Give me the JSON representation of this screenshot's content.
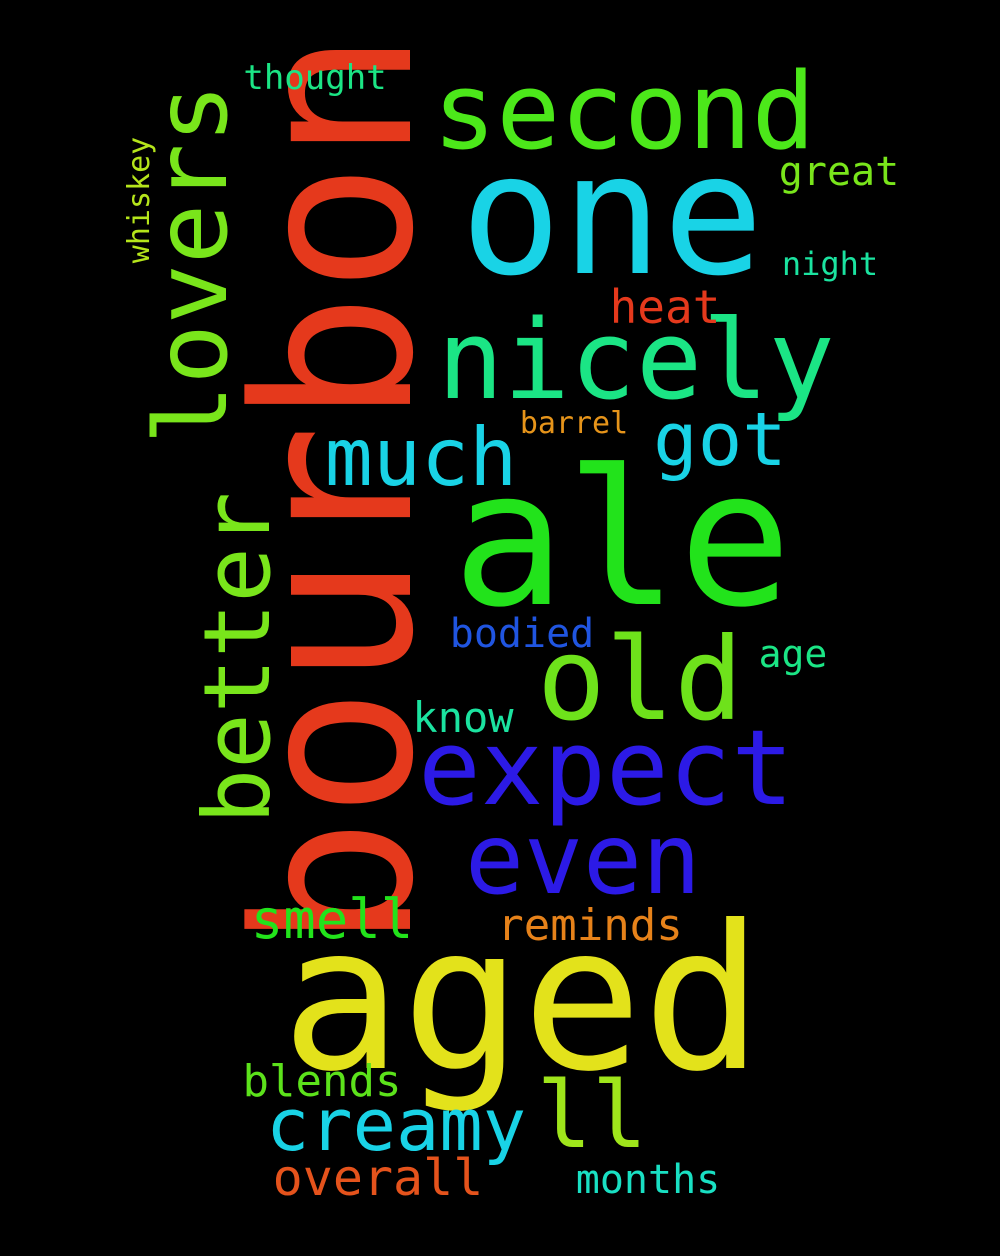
{
  "words": [
    {
      "text": "bourbon",
      "color": "#e5391c"
    },
    {
      "text": "aged",
      "color": "#e3e21b"
    },
    {
      "text": "ale",
      "color": "#22e31b"
    },
    {
      "text": "one",
      "color": "#19d3e6"
    },
    {
      "text": "second",
      "color": "#4ce81a"
    },
    {
      "text": "nicely",
      "color": "#1be585"
    },
    {
      "text": "expect",
      "color": "#2c1ae6"
    },
    {
      "text": "even",
      "color": "#2c1ae6"
    },
    {
      "text": "lovers",
      "color": "#79e51b"
    },
    {
      "text": "better",
      "color": "#79e51b"
    },
    {
      "text": "old",
      "color": "#6ee21b"
    },
    {
      "text": "ll",
      "color": "#9fe51b"
    },
    {
      "text": "much",
      "color": "#19d3e6"
    },
    {
      "text": "got",
      "color": "#19d3e6"
    },
    {
      "text": "creamy",
      "color": "#19d3e6"
    },
    {
      "text": "smell",
      "color": "#22e31b"
    },
    {
      "text": "reminds",
      "color": "#e6821a"
    },
    {
      "text": "overall",
      "color": "#e5531c"
    },
    {
      "text": "blends",
      "color": "#5ce21b"
    },
    {
      "text": "months",
      "color": "#19e0c3"
    },
    {
      "text": "heat",
      "color": "#e5391c"
    },
    {
      "text": "bodied",
      "color": "#2055e0"
    },
    {
      "text": "know",
      "color": "#1be3a0"
    },
    {
      "text": "age",
      "color": "#1be585"
    },
    {
      "text": "great",
      "color": "#79e51b"
    },
    {
      "text": "night",
      "color": "#1be3a0"
    },
    {
      "text": "thought",
      "color": "#1be585"
    },
    {
      "text": "barrel",
      "color": "#e6941a"
    },
    {
      "text": "whiskey",
      "color": "#b5e51b"
    }
  ]
}
